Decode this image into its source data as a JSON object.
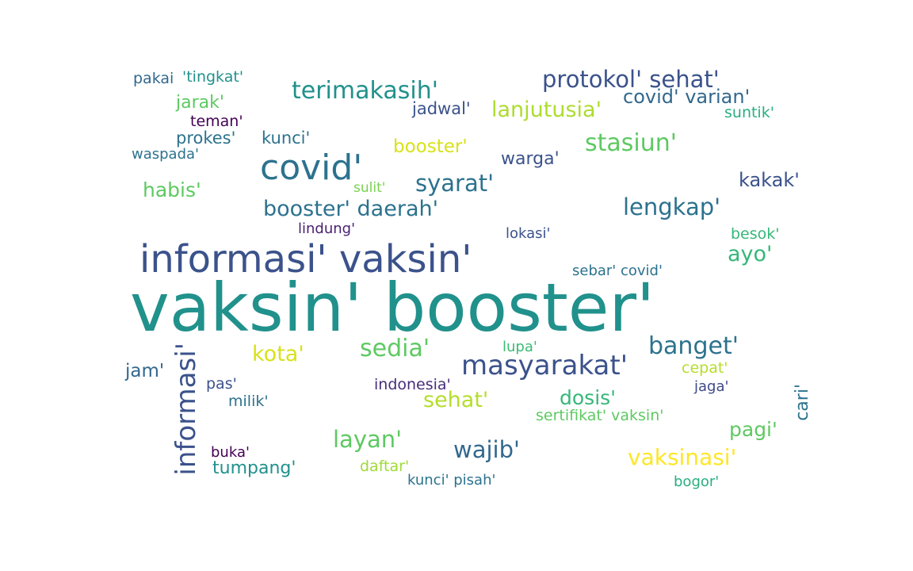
{
  "words": [
    {
      "text": "vaksin' booster'",
      "color": "#21918c"
    },
    {
      "text": "informasi' vaksin'",
      "color": "#3b528b"
    },
    {
      "text": "covid'",
      "color": "#2c728e"
    },
    {
      "text": "masyarakat'",
      "color": "#3b528b"
    },
    {
      "text": "informasi'",
      "color": "#3b528b"
    },
    {
      "text": "protokol' sehat'",
      "color": "#3b528b"
    },
    {
      "text": "terimakasih'",
      "color": "#21918c"
    },
    {
      "text": "stasiun'",
      "color": "#5ec962"
    },
    {
      "text": "sedia'",
      "color": "#5ec962"
    },
    {
      "text": "banget'",
      "color": "#2c728e"
    },
    {
      "text": "lanjutusia'",
      "color": "#addc30"
    },
    {
      "text": "syarat'",
      "color": "#2c728e"
    },
    {
      "text": "booster' daerah'",
      "color": "#2c728e"
    },
    {
      "text": "lengkap'",
      "color": "#2c728e"
    },
    {
      "text": "vaksinasi'",
      "color": "#fde725"
    },
    {
      "text": "layan'",
      "color": "#5ec962"
    },
    {
      "text": "wajib'",
      "color": "#31688e"
    },
    {
      "text": "covid' varian'",
      "color": "#31688e"
    },
    {
      "text": "kota'",
      "color": "#d8e219"
    },
    {
      "text": "sehat'",
      "color": "#b5de2b"
    },
    {
      "text": "habis'",
      "color": "#5ec962"
    },
    {
      "text": "booster'",
      "color": "#d8e219"
    },
    {
      "text": "ayo'",
      "color": "#35b779"
    },
    {
      "text": "kakak'",
      "color": "#3b528b"
    },
    {
      "text": "pagi'",
      "color": "#5ec962"
    },
    {
      "text": "dosis'",
      "color": "#35b779"
    },
    {
      "text": "warga'",
      "color": "#3b528b"
    },
    {
      "text": "jarak'",
      "color": "#5ec962"
    },
    {
      "text": "jadwal'",
      "color": "#3b528b"
    },
    {
      "text": "kunci'",
      "color": "#2c728e"
    },
    {
      "text": "prokes'",
      "color": "#2c728e"
    },
    {
      "text": "jam'",
      "color": "#31688e"
    },
    {
      "text": "cari'",
      "color": "#2c728e"
    },
    {
      "text": "tumpang'",
      "color": "#21918c"
    },
    {
      "text": "pakai",
      "color": "#31688e"
    },
    {
      "text": "'tingkat'",
      "color": "#21918c"
    },
    {
      "text": "teman'",
      "color": "#440154"
    },
    {
      "text": "suntik'",
      "color": "#29af7f"
    },
    {
      "text": "waspada'",
      "color": "#2c728e"
    },
    {
      "text": "sulit'",
      "color": "#7ad151"
    },
    {
      "text": "lindung'",
      "color": "#481f70"
    },
    {
      "text": "lokasi'",
      "color": "#3b528b"
    },
    {
      "text": "besok'",
      "color": "#35b779"
    },
    {
      "text": "sebar' covid'",
      "color": "#2c728e"
    },
    {
      "text": "lupa'",
      "color": "#3bbb75"
    },
    {
      "text": "cepat'",
      "color": "#b5de2b"
    },
    {
      "text": "jaga'",
      "color": "#3e4989"
    },
    {
      "text": "pas'",
      "color": "#3b528b"
    },
    {
      "text": "indonesia'",
      "color": "#472d7b"
    },
    {
      "text": "milik'",
      "color": "#2c728e"
    },
    {
      "text": "sertifikat' vaksin'",
      "color": "#5ec962"
    },
    {
      "text": "buka'",
      "color": "#440154"
    },
    {
      "text": "daftar'",
      "color": "#a0da39"
    },
    {
      "text": "kunci' pisah'",
      "color": "#2c728e"
    },
    {
      "text": "bogor'",
      "color": "#29af7f"
    }
  ]
}
